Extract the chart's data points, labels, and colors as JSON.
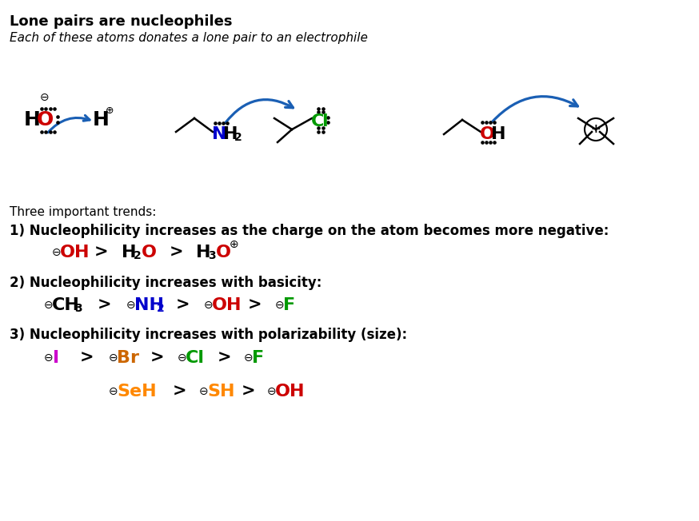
{
  "title": "Lone pairs are nucleophiles",
  "subtitle": "Each of these atoms donates a lone pair to an electrophile",
  "bg_color": "#ffffff",
  "colors": {
    "black": "#000000",
    "red": "#cc0000",
    "blue": "#0000cc",
    "green": "#009900",
    "magenta": "#cc00cc",
    "orange": "#ff8800",
    "dark_orange": "#cc6600",
    "arrow_blue": "#1a5fb4"
  },
  "trend_intro": "Three important trends:",
  "trend1_header": "1) Nucleophilicity increases as the charge on the atom becomes more negative:",
  "trend2_header": "2) Nucleophilicity increases with basicity:",
  "trend3_header": "3) Nucleophilicity increases with polarizability (size):"
}
